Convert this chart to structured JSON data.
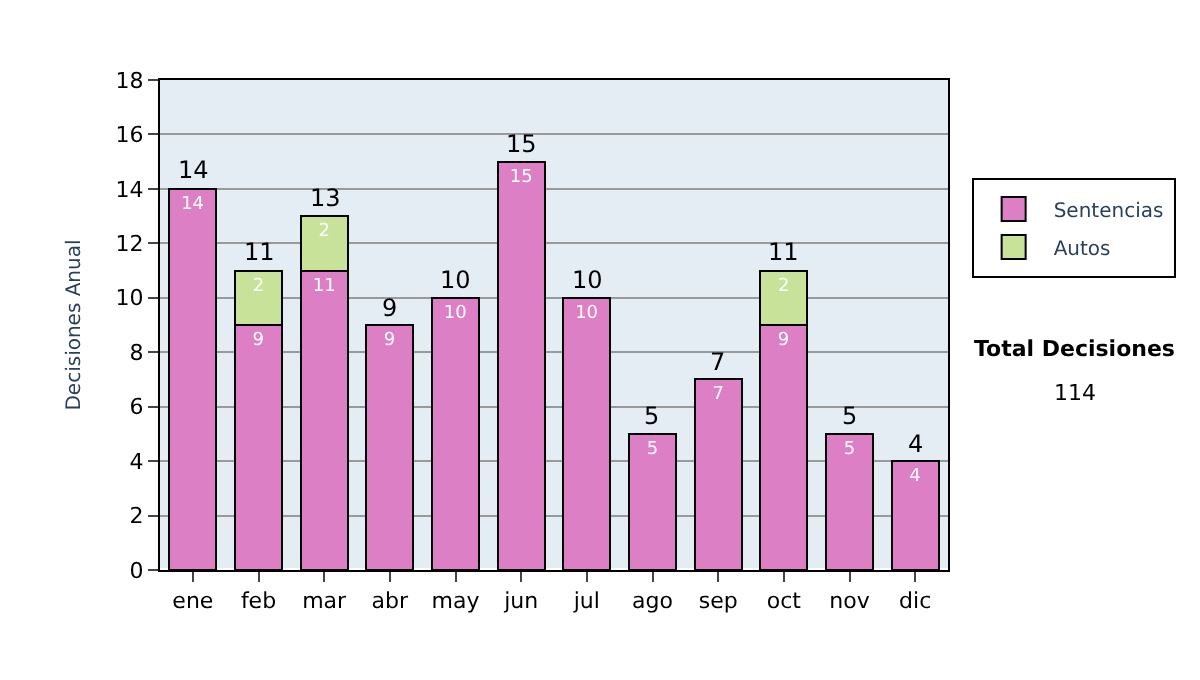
{
  "chart_data": {
    "type": "bar",
    "stacked": true,
    "ylabel": "Decisiones Anual",
    "categories": [
      "ene",
      "feb",
      "mar",
      "abr",
      "may",
      "jun",
      "jul",
      "ago",
      "sep",
      "oct",
      "nov",
      "dic"
    ],
    "series": [
      {
        "name": "Sentencias",
        "color": "#dc7fc4",
        "values": [
          14,
          9,
          11,
          9,
          10,
          15,
          10,
          5,
          7,
          9,
          5,
          4
        ]
      },
      {
        "name": "Autos",
        "color": "#c8e29a",
        "values": [
          null,
          2,
          2,
          null,
          null,
          null,
          null,
          null,
          null,
          2,
          null,
          null
        ]
      }
    ],
    "totals": [
      "14",
      "11",
      "13",
      "9",
      "10",
      "15",
      "10",
      "5",
      "7",
      "11",
      "5",
      "4"
    ],
    "data_labels": true,
    "ylim": [
      0,
      18
    ],
    "yticks": [
      0,
      2,
      4,
      6,
      8,
      10,
      12,
      14,
      16,
      18
    ],
    "grid": "y",
    "legend": "right",
    "annotations": [
      "Total Decisiones",
      "114"
    ]
  }
}
